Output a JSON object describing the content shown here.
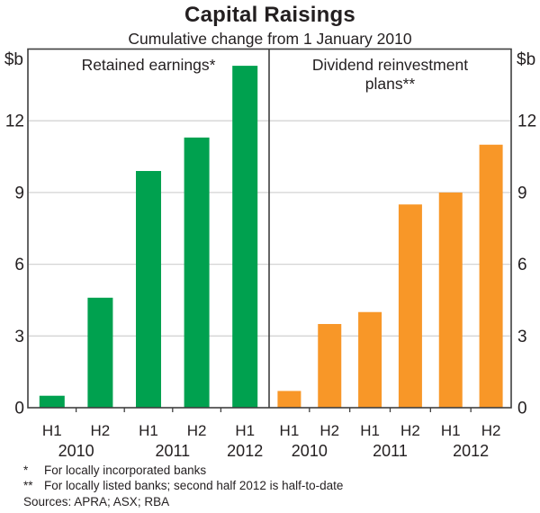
{
  "chart_data": {
    "type": "bar",
    "title": "Capital Raisings",
    "subtitle": "Cumulative change from 1 January 2010",
    "unit_label": "$b",
    "ylim": [
      0,
      15
    ],
    "yticks": [
      0,
      3,
      6,
      9,
      12
    ],
    "grid": "horizontal",
    "legend_position": "none",
    "panels": [
      {
        "label": "Retained earnings*",
        "label_lines": [
          "Retained earnings*"
        ],
        "color": "#00A14F",
        "categories": [
          "H1 2010",
          "H2 2010",
          "H1 2011",
          "H2 2011",
          "H1 2012"
        ],
        "half_labels": [
          "H1",
          "H2",
          "H1",
          "H2",
          "H1"
        ],
        "year_groups": [
          {
            "label": "2010",
            "slots": [
              0,
              1
            ]
          },
          {
            "label": "2011",
            "slots": [
              2,
              3
            ]
          },
          {
            "label": "2012",
            "slots": [
              4
            ]
          }
        ],
        "values": [
          0.5,
          4.6,
          9.9,
          11.3,
          14.3
        ]
      },
      {
        "label": "Dividend reinvestment plans**",
        "label_lines": [
          "Dividend reinvestment",
          "plans**"
        ],
        "color": "#F89728",
        "categories": [
          "H1 2010",
          "H2 2010",
          "H1 2011",
          "H2 2011",
          "H1 2012",
          "H2 2012"
        ],
        "half_labels": [
          "H1",
          "H2",
          "H1",
          "H2",
          "H1",
          "H2"
        ],
        "year_groups": [
          {
            "label": "2010",
            "slots": [
              0,
              1
            ]
          },
          {
            "label": "2011",
            "slots": [
              2,
              3
            ]
          },
          {
            "label": "2012",
            "slots": [
              4,
              5
            ]
          }
        ],
        "values": [
          0.7,
          3.5,
          4.0,
          8.5,
          9.0,
          11.0
        ]
      }
    ]
  },
  "footnotes": [
    {
      "marker": "*",
      "text": "For locally incorporated banks"
    },
    {
      "marker": "**",
      "text": "For locally listed banks; second half 2012 is half-to-date"
    }
  ],
  "sources": "Sources: APRA; ASX; RBA",
  "colors": {
    "retained_earnings_bar": "#00A14F",
    "dividend_reinvestment_bar": "#F89728",
    "gridline": "#D4D4D4",
    "axis": "#3F3F3F",
    "text": "#231F20"
  }
}
